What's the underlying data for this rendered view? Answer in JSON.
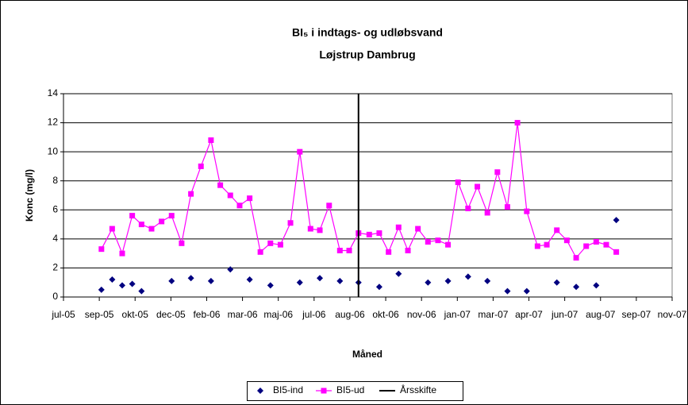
{
  "chart_data": {
    "type": "line",
    "title": "BI₅ i indtags- og udløbsvand",
    "subtitle": "Løjstrup Dambrug",
    "y_label": "Konc (mg/l)",
    "x_label": "Måned",
    "xlim": [
      38550,
      39400
    ],
    "xticks": [
      {
        "value": 38550,
        "label": "jul-05"
      },
      {
        "value": 38600,
        "label": "sep-05"
      },
      {
        "value": 38650,
        "label": "okt-05"
      },
      {
        "value": 38700,
        "label": "dec-05"
      },
      {
        "value": 38750,
        "label": "feb-06"
      },
      {
        "value": 38800,
        "label": "mar-06"
      },
      {
        "value": 38850,
        "label": "maj-06"
      },
      {
        "value": 38900,
        "label": "jul-06"
      },
      {
        "value": 38950,
        "label": "aug-06"
      },
      {
        "value": 39000,
        "label": "okt-06"
      },
      {
        "value": 39050,
        "label": "nov-06"
      },
      {
        "value": 39100,
        "label": "jan-07"
      },
      {
        "value": 39150,
        "label": "mar-07"
      },
      {
        "value": 39200,
        "label": "apr-07"
      },
      {
        "value": 39250,
        "label": "jun-07"
      },
      {
        "value": 39300,
        "label": "aug-07"
      },
      {
        "value": 39350,
        "label": "sep-07"
      },
      {
        "value": 39400,
        "label": "nov-07"
      }
    ],
    "ylim": [
      0,
      14
    ],
    "yticks": [
      0,
      2,
      4,
      6,
      8,
      10,
      12,
      14
    ],
    "grid": true,
    "legend": "bottom",
    "series": [
      {
        "name": "BI5-ind",
        "color": "#000080",
        "marker": "diamond",
        "line": false,
        "x": [
          38603,
          38618,
          38632,
          38646,
          38659,
          38701,
          38728,
          38756,
          38783,
          38810,
          38839,
          38880,
          38908,
          38936,
          38962,
          38991,
          39018,
          39059,
          39087,
          39115,
          39142,
          39170,
          39197,
          39239,
          39266,
          39294,
          39322
        ],
        "values": [
          0.5,
          1.2,
          0.8,
          0.9,
          0.4,
          1.1,
          1.3,
          1.1,
          1.9,
          1.2,
          0.8,
          1.0,
          1.3,
          1.1,
          1.0,
          0.7,
          1.6,
          1.0,
          1.1,
          1.4,
          1.1,
          0.4,
          0.4,
          1.0,
          0.7,
          0.8,
          5.3
        ]
      },
      {
        "name": "BI5-ud",
        "color": "#ff00ff",
        "marker": "square",
        "line": true,
        "x": [
          38603,
          38618,
          38632,
          38646,
          38659,
          38673,
          38687,
          38701,
          38715,
          38728,
          38742,
          38756,
          38769,
          38783,
          38796,
          38810,
          38825,
          38839,
          38853,
          38867,
          38880,
          38895,
          38908,
          38921,
          38936,
          38949,
          38962,
          38977,
          38991,
          39004,
          39018,
          39031,
          39045,
          39059,
          39073,
          39087,
          39101,
          39115,
          39128,
          39142,
          39156,
          39170,
          39184,
          39197,
          39212,
          39225,
          39239,
          39253,
          39266,
          39280,
          39294,
          39308,
          39322
        ],
        "values": [
          3.3,
          4.7,
          3.0,
          5.6,
          5.0,
          4.7,
          5.2,
          5.6,
          3.7,
          7.1,
          9.0,
          10.8,
          7.7,
          7.0,
          6.3,
          6.8,
          3.1,
          3.7,
          3.6,
          5.1,
          10.0,
          4.7,
          4.6,
          6.3,
          3.2,
          3.2,
          4.4,
          4.3,
          4.4,
          3.1,
          4.8,
          3.2,
          4.7,
          3.8,
          3.9,
          3.6,
          7.9,
          6.1,
          7.6,
          5.8,
          8.6,
          6.2,
          12.0,
          5.9,
          3.5,
          3.6,
          4.6,
          3.9,
          2.7,
          3.5,
          3.8,
          3.6,
          3.1
        ]
      },
      {
        "name": "Årsskifte",
        "color": "#000000",
        "marker": "none",
        "line": true,
        "x": [
          38962,
          38962
        ],
        "values": [
          0,
          14
        ]
      }
    ]
  }
}
